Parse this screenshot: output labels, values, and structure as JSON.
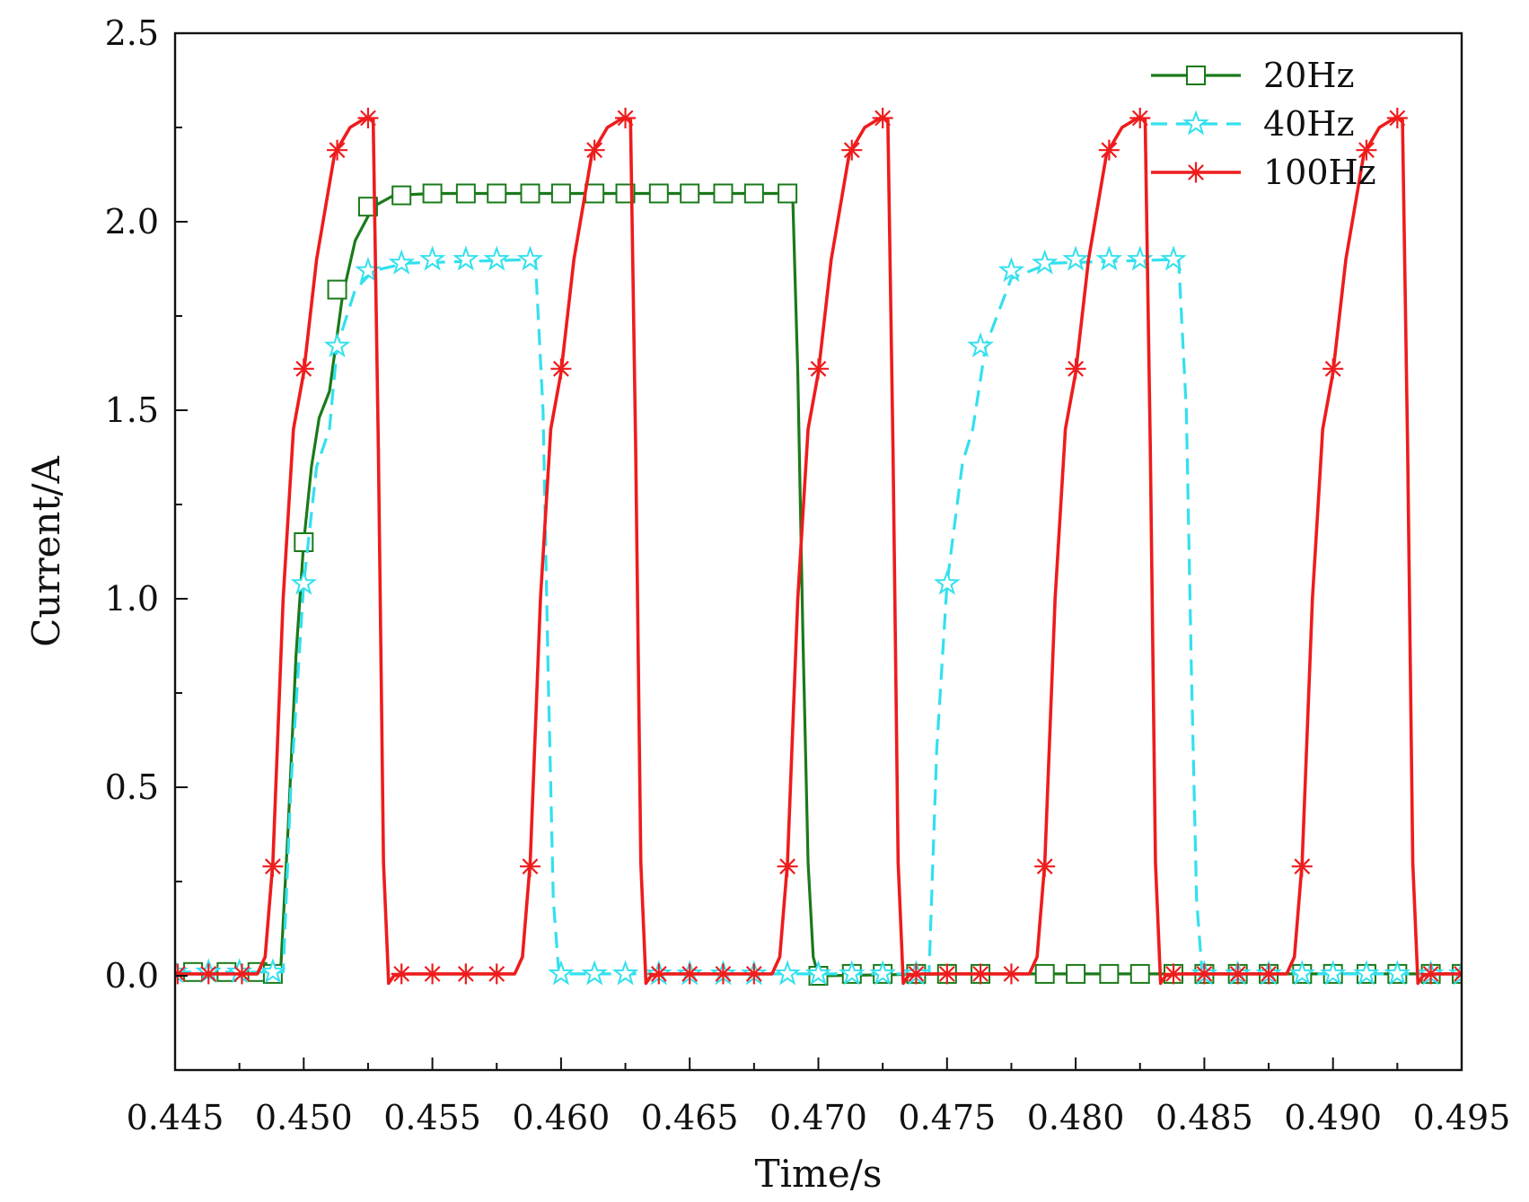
{
  "chart_data": {
    "type": "line",
    "title": "",
    "xlabel": "Time/s",
    "ylabel": "Current/A",
    "xlim": [
      0.445,
      0.495
    ],
    "ylim": [
      -0.25,
      2.5
    ],
    "x_ticks": [
      0.445,
      0.45,
      0.455,
      0.46,
      0.465,
      0.47,
      0.475,
      0.48,
      0.485,
      0.49,
      0.495
    ],
    "x_tick_labels": [
      "0.445",
      "0.450",
      "0.455",
      "0.460",
      "0.465",
      "0.470",
      "0.475",
      "0.480",
      "0.485",
      "0.490",
      "0.495"
    ],
    "y_ticks": [
      0.0,
      0.5,
      1.0,
      1.5,
      2.0,
      2.5
    ],
    "y_tick_labels": [
      "0.0",
      "0.5",
      "1.0",
      "1.5",
      "2.0",
      "2.5"
    ],
    "grid": false,
    "legend_position": "top-right",
    "series": [
      {
        "name": "20Hz",
        "color": "#1a7a1a",
        "line_style": "solid",
        "marker": "square",
        "x": [
          0.445,
          0.4491,
          0.4494,
          0.4497,
          0.45,
          0.4503,
          0.4506,
          0.451,
          0.4515,
          0.452,
          0.4527,
          0.4535,
          0.455,
          0.46,
          0.465,
          0.469,
          0.4692,
          0.4694,
          0.4696,
          0.4698,
          0.47,
          0.475,
          0.48,
          0.485,
          0.49,
          0.495
        ],
        "y": [
          0.01,
          0.01,
          0.4,
          0.85,
          1.15,
          1.35,
          1.48,
          1.55,
          1.8,
          1.95,
          2.04,
          2.07,
          2.075,
          2.075,
          2.075,
          2.075,
          1.6,
          0.9,
          0.3,
          0.05,
          0.0,
          0.005,
          0.005,
          0.005,
          0.005,
          0.005
        ],
        "marker_x": [
          0.4457,
          0.447,
          0.4482,
          0.4488,
          0.45,
          0.4513,
          0.4525,
          0.4538,
          0.455,
          0.4563,
          0.4575,
          0.4588,
          0.46,
          0.4613,
          0.4625,
          0.4638,
          0.465,
          0.4663,
          0.4675,
          0.4688,
          0.47,
          0.4713,
          0.4725,
          0.4738,
          0.475,
          0.4763,
          0.4788,
          0.48,
          0.4813,
          0.4825,
          0.4838,
          0.485,
          0.4863,
          0.4875,
          0.4888,
          0.49,
          0.4913,
          0.4925,
          0.4938,
          0.495
        ],
        "marker_y": [
          0.01,
          0.01,
          0.01,
          0.005,
          1.15,
          1.82,
          2.04,
          2.07,
          2.075,
          2.075,
          2.075,
          2.075,
          2.075,
          2.075,
          2.075,
          2.075,
          2.075,
          2.075,
          2.075,
          2.075,
          0.0,
          0.005,
          0.005,
          0.005,
          0.005,
          0.005,
          0.005,
          0.005,
          0.005,
          0.005,
          0.005,
          0.005,
          0.005,
          0.005,
          0.005,
          0.005,
          0.005,
          0.005,
          0.005,
          0.005
        ]
      },
      {
        "name": "40Hz",
        "color": "#33e0ee",
        "line_style": "dashed",
        "marker": "star",
        "x": [
          0.445,
          0.4492,
          0.4495,
          0.45,
          0.4505,
          0.451,
          0.4513,
          0.452,
          0.4527,
          0.454,
          0.459,
          0.4593,
          0.4595,
          0.4597,
          0.4599,
          0.4601,
          0.465,
          0.47,
          0.4743,
          0.4746,
          0.475,
          0.4756,
          0.476,
          0.4765,
          0.4775,
          0.479,
          0.484,
          0.4843,
          0.4845,
          0.4847,
          0.4849,
          0.4851,
          0.49,
          0.495
        ],
        "y": [
          0.01,
          0.01,
          0.5,
          1.04,
          1.35,
          1.45,
          1.67,
          1.82,
          1.87,
          1.89,
          1.9,
          1.5,
          0.8,
          0.2,
          0.02,
          0.005,
          0.005,
          0.005,
          0.005,
          0.6,
          1.04,
          1.36,
          1.45,
          1.67,
          1.85,
          1.89,
          1.9,
          1.5,
          0.8,
          0.2,
          0.02,
          0.005,
          0.005,
          0.005
        ],
        "marker_x": [
          0.445,
          0.4463,
          0.4475,
          0.4488,
          0.45,
          0.4513,
          0.4525,
          0.4538,
          0.455,
          0.4563,
          0.4575,
          0.4588,
          0.46,
          0.4613,
          0.4625,
          0.4638,
          0.465,
          0.4663,
          0.4675,
          0.4688,
          0.47,
          0.4713,
          0.4725,
          0.4738,
          0.475,
          0.4763,
          0.4775,
          0.4788,
          0.48,
          0.4813,
          0.4825,
          0.4838,
          0.485,
          0.4863,
          0.4875,
          0.4888,
          0.49,
          0.4913,
          0.4925,
          0.4938,
          0.495
        ],
        "marker_y": [
          0.01,
          0.01,
          0.01,
          0.01,
          1.04,
          1.67,
          1.87,
          1.89,
          1.9,
          1.9,
          1.9,
          1.9,
          0.005,
          0.005,
          0.005,
          0.005,
          0.005,
          0.005,
          0.005,
          0.005,
          0.005,
          0.005,
          0.005,
          0.005,
          1.04,
          1.67,
          1.87,
          1.89,
          1.9,
          1.9,
          1.9,
          1.9,
          0.005,
          0.005,
          0.005,
          0.005,
          0.005,
          0.005,
          0.005,
          0.005,
          0.005
        ]
      },
      {
        "name": "100Hz",
        "color": "#ee1c1c",
        "line_style": "solid",
        "marker": "asterisk",
        "x": [
          0.445,
          0.4482,
          0.4485,
          0.4488,
          0.4492,
          0.4496,
          0.45,
          0.4505,
          0.4512,
          0.4518,
          0.4524,
          0.4527,
          0.4529,
          0.4531,
          0.4533,
          0.4535,
          0.454,
          0.455,
          0.456,
          0.4575,
          0.4582,
          0.4585,
          0.4588,
          0.4592,
          0.4596,
          0.46,
          0.4605,
          0.4612,
          0.4618,
          0.4624,
          0.4627,
          0.4629,
          0.4631,
          0.4633,
          0.4635,
          0.464,
          0.465,
          0.466,
          0.4675,
          0.4682,
          0.4685,
          0.4688,
          0.4692,
          0.4696,
          0.47,
          0.4705,
          0.4712,
          0.4718,
          0.4724,
          0.4727,
          0.4729,
          0.4731,
          0.4733,
          0.4735,
          0.474,
          0.475,
          0.476,
          0.4775,
          0.4782,
          0.4785,
          0.4788,
          0.4792,
          0.4796,
          0.48,
          0.4805,
          0.4812,
          0.4818,
          0.4824,
          0.4827,
          0.4829,
          0.4831,
          0.4833,
          0.4835,
          0.484,
          0.485,
          0.486,
          0.4875,
          0.4882,
          0.4885,
          0.4888,
          0.4892,
          0.4896,
          0.49,
          0.4905,
          0.4912,
          0.4918,
          0.4924,
          0.4927,
          0.4929,
          0.4931,
          0.4933,
          0.4935,
          0.494,
          0.495
        ],
        "y": [
          0.005,
          0.005,
          0.05,
          0.3,
          1.0,
          1.45,
          1.6,
          1.9,
          2.18,
          2.25,
          2.275,
          2.27,
          1.4,
          0.3,
          -0.02,
          0.0,
          0.005,
          0.005,
          0.005,
          0.005,
          0.005,
          0.05,
          0.3,
          1.0,
          1.45,
          1.6,
          1.9,
          2.18,
          2.25,
          2.275,
          2.27,
          1.4,
          0.3,
          -0.02,
          0.0,
          0.005,
          0.005,
          0.005,
          0.005,
          0.005,
          0.05,
          0.3,
          1.0,
          1.45,
          1.6,
          1.9,
          2.18,
          2.25,
          2.275,
          2.27,
          1.4,
          0.3,
          -0.02,
          0.0,
          0.005,
          0.005,
          0.005,
          0.005,
          0.005,
          0.05,
          0.3,
          1.0,
          1.45,
          1.6,
          1.9,
          2.18,
          2.25,
          2.275,
          2.27,
          1.4,
          0.3,
          -0.02,
          0.0,
          0.005,
          0.005,
          0.005,
          0.005,
          0.005,
          0.05,
          0.3,
          1.0,
          1.45,
          1.6,
          1.9,
          2.18,
          2.25,
          2.275,
          2.27,
          1.4,
          0.3,
          -0.02,
          0.0,
          0.005,
          0.005
        ],
        "marker_x": [
          0.4451,
          0.4463,
          0.4476,
          0.4488,
          0.45,
          0.4513,
          0.4525,
          0.4538,
          0.455,
          0.4563,
          0.4575,
          0.4588,
          0.46,
          0.4613,
          0.4625,
          0.4638,
          0.465,
          0.4663,
          0.4675,
          0.4688,
          0.47,
          0.4713,
          0.4725,
          0.4738,
          0.475,
          0.4763,
          0.4775,
          0.4788,
          0.48,
          0.4813,
          0.4825,
          0.4838,
          0.485,
          0.4863,
          0.4875,
          0.4888,
          0.49,
          0.4913,
          0.4925,
          0.4938,
          0.495
        ],
        "marker_y": [
          0.005,
          0.005,
          0.005,
          0.29,
          1.61,
          2.19,
          2.275,
          0.005,
          0.005,
          0.005,
          0.005,
          0.29,
          1.61,
          2.19,
          2.275,
          0.005,
          0.005,
          0.005,
          0.005,
          0.29,
          1.61,
          2.19,
          2.275,
          0.005,
          0.005,
          0.005,
          0.005,
          0.29,
          1.61,
          2.19,
          2.275,
          0.005,
          0.005,
          0.005,
          0.005,
          0.29,
          1.61,
          2.19,
          2.275,
          0.005,
          0.005
        ]
      }
    ]
  }
}
